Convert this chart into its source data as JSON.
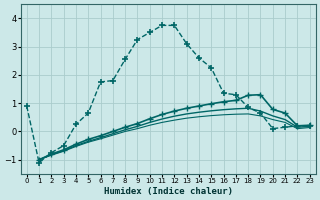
{
  "xlabel": "Humidex (Indice chaleur)",
  "background_color": "#cce8e8",
  "grid_color": "#aacccc",
  "line_color": "#006666",
  "xlim": [
    -0.5,
    23.5
  ],
  "ylim": [
    -1.5,
    4.5
  ],
  "yticks": [
    -1,
    0,
    1,
    2,
    3,
    4
  ],
  "xticks": [
    0,
    1,
    2,
    3,
    4,
    5,
    6,
    7,
    8,
    9,
    10,
    11,
    12,
    13,
    14,
    15,
    16,
    17,
    18,
    19,
    20,
    21,
    22,
    23
  ],
  "series": [
    {
      "x": [
        0,
        1,
        2,
        3,
        4,
        5,
        6,
        7,
        8,
        9,
        10,
        11,
        12,
        13,
        14,
        15,
        16,
        17,
        18,
        19,
        20,
        21,
        22,
        23
      ],
      "y": [
        0.9,
        -1.1,
        -0.75,
        -0.5,
        0.25,
        0.65,
        1.75,
        1.8,
        2.55,
        3.25,
        3.5,
        3.75,
        3.75,
        3.1,
        2.6,
        2.25,
        1.35,
        1.3,
        0.85,
        0.65,
        0.1,
        0.15,
        0.2,
        0.2
      ],
      "marker": "+",
      "linestyle": "--",
      "linewidth": 1.0,
      "markersize": 5,
      "markeredgewidth": 1.2
    },
    {
      "x": [
        1,
        2,
        3,
        4,
        5,
        6,
        7,
        8,
        9,
        10,
        11,
        12,
        13,
        14,
        15,
        16,
        17,
        18,
        19,
        20,
        21,
        22,
        23
      ],
      "y": [
        -1.0,
        -0.8,
        -0.65,
        -0.45,
        -0.28,
        -0.15,
        0.0,
        0.15,
        0.28,
        0.45,
        0.6,
        0.72,
        0.82,
        0.9,
        0.98,
        1.05,
        1.1,
        1.28,
        1.3,
        0.78,
        0.65,
        0.2,
        0.22
      ],
      "marker": "+",
      "linestyle": "-",
      "linewidth": 1.2,
      "markersize": 4,
      "markeredgewidth": 1.0
    },
    {
      "x": [
        1,
        2,
        3,
        4,
        5,
        6,
        7,
        8,
        9,
        10,
        11,
        12,
        13,
        14,
        15,
        16,
        17,
        18,
        19,
        20,
        21,
        22,
        23
      ],
      "y": [
        -1.0,
        -0.82,
        -0.68,
        -0.5,
        -0.35,
        -0.22,
        -0.08,
        0.06,
        0.18,
        0.32,
        0.44,
        0.54,
        0.62,
        0.68,
        0.73,
        0.77,
        0.8,
        0.82,
        0.72,
        0.55,
        0.42,
        0.15,
        0.18
      ],
      "marker": "",
      "linestyle": "-",
      "linewidth": 1.0,
      "markersize": 0,
      "markeredgewidth": 0
    },
    {
      "x": [
        1,
        2,
        3,
        4,
        5,
        6,
        7,
        8,
        9,
        10,
        11,
        12,
        13,
        14,
        15,
        16,
        17,
        18,
        19,
        20,
        21,
        22,
        23
      ],
      "y": [
        -1.0,
        -0.84,
        -0.7,
        -0.53,
        -0.38,
        -0.26,
        -0.13,
        0.0,
        0.1,
        0.22,
        0.32,
        0.4,
        0.47,
        0.52,
        0.56,
        0.59,
        0.61,
        0.62,
        0.55,
        0.42,
        0.32,
        0.1,
        0.14
      ],
      "marker": "",
      "linestyle": "-",
      "linewidth": 0.8,
      "markersize": 0,
      "markeredgewidth": 0
    }
  ]
}
